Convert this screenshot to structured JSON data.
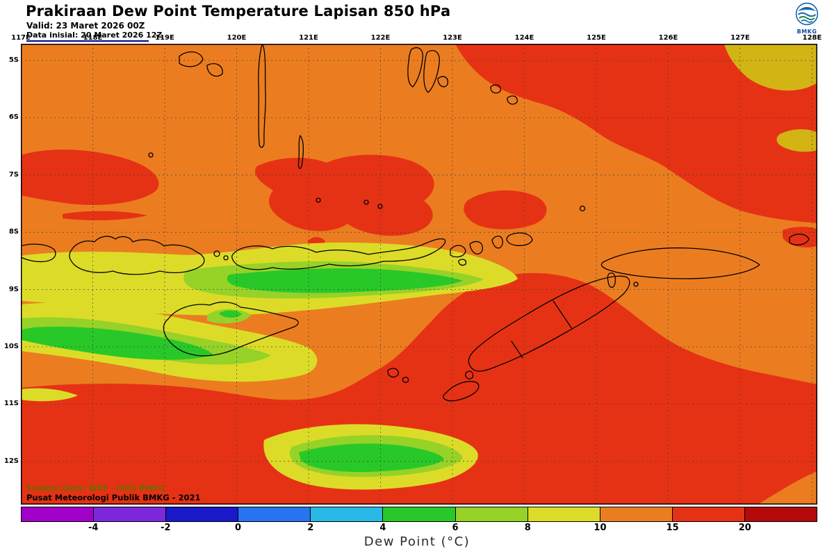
{
  "header": {
    "title": "Prakiraan Dew Point Temperature Lapisan 850 hPa",
    "valid_line": "Valid: 23 Maret 2026 00Z",
    "init_line": "Data inisial: 20 Maret 2026 12Z",
    "logo_text": "BMKG"
  },
  "map": {
    "lon_labels": [
      "117E",
      "118E",
      "119E",
      "120E",
      "121E",
      "122E",
      "123E",
      "124E",
      "125E",
      "126E",
      "127E",
      "128E"
    ],
    "lat_labels": [
      "5S",
      "6S",
      "7S",
      "8S",
      "9S",
      "10S",
      "11S",
      "12S"
    ],
    "credit_line1": "Sumber Data: WRF - CIPS BMKG",
    "credit_line2": "Pusat Meteorologi Publik BMKG -  2021"
  },
  "palette": {
    "base_orange": "#EB7D20",
    "red": "#E63214",
    "dark_red": "#B40A0A",
    "yellow": "#DCDC28",
    "chartreuse": "#96D228",
    "green": "#28C828",
    "gold": "#D2B414",
    "grid": "#3C3C3C",
    "coast": "#000000",
    "credit1": "#6B6B00",
    "credit2": "#000000"
  },
  "colorbar": {
    "caption": "Dew Point (°C)",
    "tick_labels": [
      "-4",
      "-2",
      "0",
      "2",
      "4",
      "6",
      "8",
      "10",
      "15",
      "20"
    ],
    "colors": [
      "#A000C8",
      "#7D28DC",
      "#1919C8",
      "#2873F0",
      "#28B9E6",
      "#28C828",
      "#96D228",
      "#DCDC28",
      "#EB7D20",
      "#E63214",
      "#B40A0A"
    ]
  }
}
